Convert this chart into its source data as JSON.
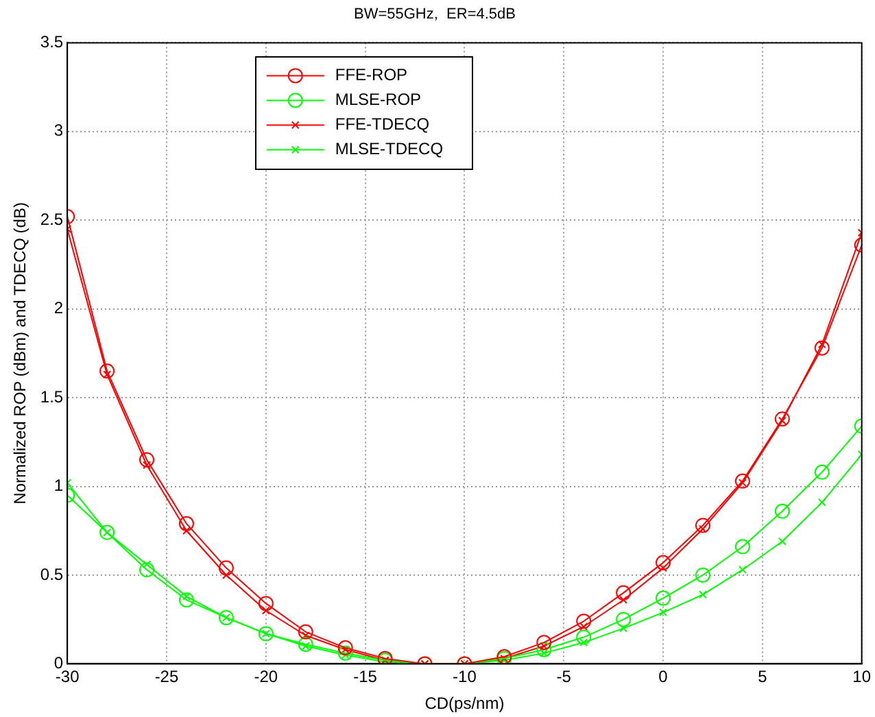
{
  "chart_data": {
    "type": "line",
    "title": "BW=55GHz,  ER=4.5dB",
    "xlabel": "CD(ps/nm)",
    "ylabel": "Normalized ROP (dBm) and TDECQ (dB)",
    "x": [
      -30,
      -28,
      -26,
      -24,
      -22,
      -20,
      -18,
      -16,
      -14,
      -12,
      -10,
      -8,
      -6,
      -4,
      -2,
      0,
      2,
      4,
      6,
      8,
      10
    ],
    "series": [
      {
        "name": "FFE-ROP",
        "color": "#ff0000",
        "marker": "circle",
        "values": [
          2.52,
          1.65,
          1.15,
          0.79,
          0.54,
          0.34,
          0.18,
          0.09,
          0.03,
          0,
          0,
          0.04,
          0.12,
          0.24,
          0.4,
          0.57,
          0.78,
          1.03,
          1.38,
          1.78,
          2.36
        ]
      },
      {
        "name": "MLSE-ROP",
        "color": "#00ff00",
        "marker": "circle",
        "values": [
          0.95,
          0.74,
          0.53,
          0.36,
          0.26,
          0.17,
          0.11,
          0.06,
          0.02,
          0,
          0,
          0.03,
          0.08,
          0.15,
          0.25,
          0.37,
          0.5,
          0.66,
          0.86,
          1.08,
          1.34
        ]
      },
      {
        "name": "FFE-TDECQ",
        "color": "#ff0000",
        "marker": "cross",
        "values": [
          2.45,
          1.63,
          1.12,
          0.75,
          0.5,
          0.3,
          0.16,
          0.08,
          0.02,
          0,
          0,
          0.03,
          0.1,
          0.21,
          0.36,
          0.54,
          0.76,
          1.02,
          1.37,
          1.8,
          2.43
        ]
      },
      {
        "name": "MLSE-TDECQ",
        "color": "#00ff00",
        "marker": "cross",
        "values": [
          1.02,
          0.74,
          0.56,
          0.38,
          0.26,
          0.17,
          0.1,
          0.05,
          0.01,
          0,
          0,
          0.02,
          0.06,
          0.12,
          0.2,
          0.29,
          0.39,
          0.53,
          0.69,
          0.91,
          1.18
        ]
      }
    ],
    "xlim": [
      -30,
      10
    ],
    "xticks": [
      -30,
      -25,
      -20,
      -15,
      -10,
      -5,
      0,
      5,
      10
    ],
    "ylim": [
      0,
      3.5
    ],
    "yticks": [
      0,
      0.5,
      1,
      1.5,
      2,
      2.5,
      3,
      3.5
    ],
    "grid": true,
    "legend": "top",
    "line_style": "solid"
  }
}
